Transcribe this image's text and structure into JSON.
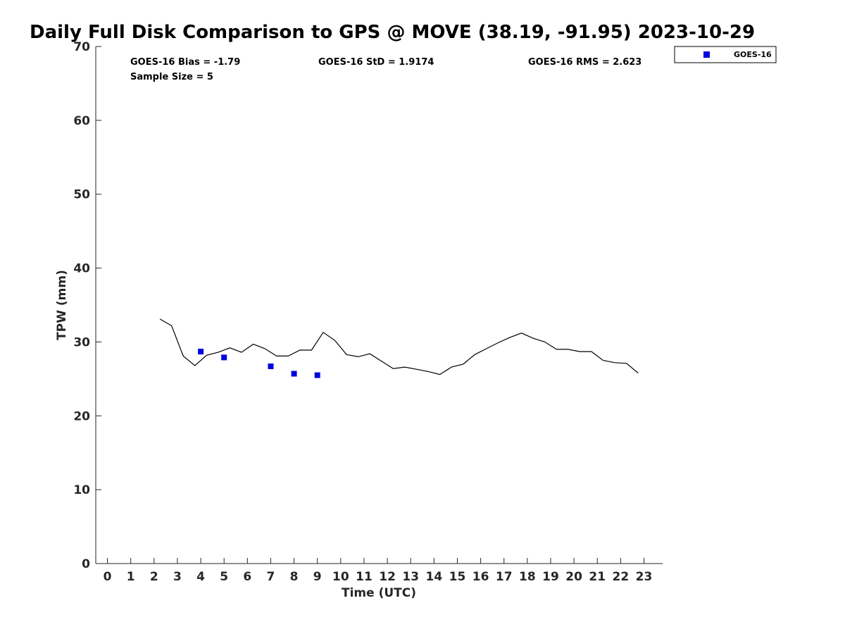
{
  "chart_data": {
    "type": "line",
    "title": "Daily Full Disk Comparison to GPS @ MOVE (38.19, -91.95) 2023-10-29",
    "xlabel": "Time (UTC)",
    "ylabel": "TPW (mm)",
    "xlim": [
      -0.5,
      23.8
    ],
    "ylim": [
      0,
      70
    ],
    "x_ticks": [
      0,
      1,
      2,
      3,
      4,
      5,
      6,
      7,
      8,
      9,
      10,
      11,
      12,
      13,
      14,
      15,
      16,
      17,
      18,
      19,
      20,
      21,
      22,
      23
    ],
    "y_ticks": [
      0,
      10,
      20,
      30,
      40,
      50,
      60,
      70
    ],
    "grid": false,
    "legend": {
      "position": "top-right",
      "entries": [
        "GOES-16"
      ]
    },
    "stats": {
      "bias": "GOES-16 Bias = -1.79",
      "std": "GOES-16 StD = 1.9174",
      "rms": "GOES-16 RMS = 2.623",
      "sample_size": "Sample Size = 5"
    },
    "series": [
      {
        "kind": "line",
        "color": "#000000",
        "x": [
          2.25,
          2.75,
          3.25,
          3.75,
          4.25,
          4.75,
          5.25,
          5.75,
          6.25,
          6.75,
          7.25,
          7.75,
          8.25,
          8.75,
          9.25,
          9.75,
          10.25,
          10.75,
          11.25,
          11.75,
          12.25,
          12.75,
          13.25,
          13.75,
          14.25,
          14.75,
          15.25,
          15.75,
          16.25,
          16.75,
          17.25,
          17.75,
          18.25,
          18.75,
          19.25,
          19.75,
          20.25,
          20.75,
          21.25,
          21.75,
          22.25,
          22.75
        ],
        "y": [
          33.1,
          32.2,
          28.1,
          26.8,
          28.2,
          28.6,
          29.2,
          28.6,
          29.7,
          29.1,
          28.1,
          28.1,
          28.9,
          28.9,
          31.3,
          30.2,
          28.3,
          28.0,
          28.4,
          27.4,
          26.4,
          26.6,
          26.3,
          26.0,
          25.6,
          26.6,
          27.0,
          28.3,
          29.1,
          29.9,
          30.6,
          31.2,
          30.5,
          30.0,
          29.0,
          29.0,
          28.7,
          28.7,
          27.5,
          27.2,
          27.1,
          25.8
        ]
      },
      {
        "name": "GOES-16",
        "kind": "scatter",
        "color": "#0000dd",
        "x": [
          4.0,
          5.0,
          7.0,
          8.0,
          9.0
        ],
        "y": [
          28.7,
          27.9,
          26.7,
          25.7,
          25.5
        ]
      }
    ]
  }
}
